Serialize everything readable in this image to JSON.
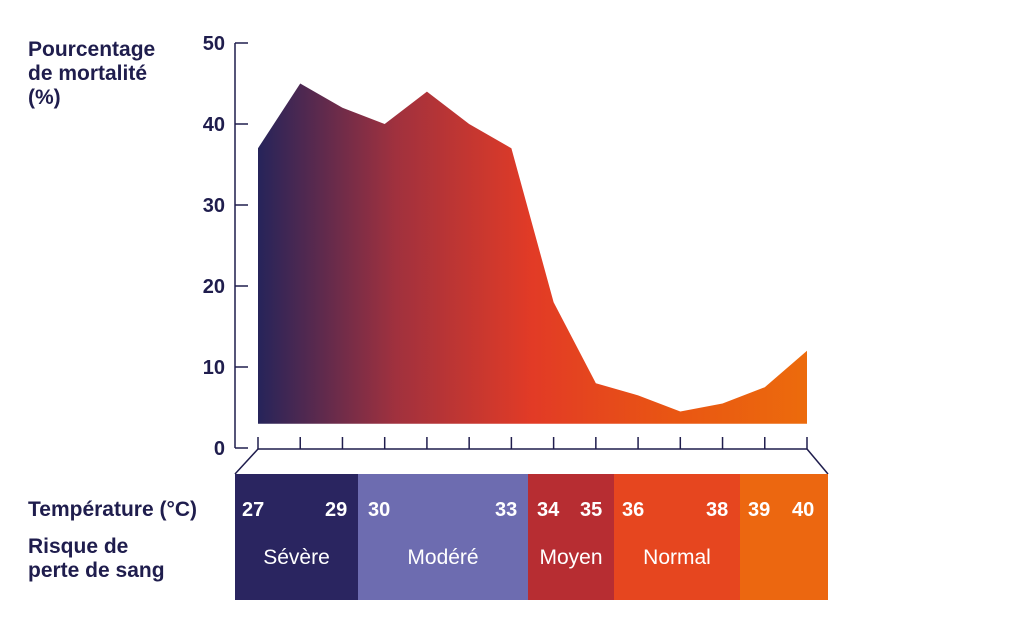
{
  "chart_data": {
    "type": "area",
    "ylabel": "Pourcentage\nde mortalité\n(%)",
    "ylim": [
      0,
      50
    ],
    "yticks": [
      0,
      10,
      20,
      30,
      40,
      50
    ],
    "x": [
      27,
      28,
      29,
      30,
      31,
      32,
      33,
      34,
      35,
      36,
      37,
      38,
      39,
      40
    ],
    "values": [
      37,
      45,
      42,
      40,
      44,
      40,
      37,
      18,
      8,
      6.5,
      4.5,
      5.5,
      7.5,
      12
    ],
    "baseline": 3,
    "gradient": [
      "#26245a",
      "#a0313e",
      "#e23b26",
      "#e95513",
      "#ec6b0c"
    ]
  },
  "temperature_label": "Température (°C)",
  "risk_label": "Risque de\nperte de sang",
  "bands": [
    {
      "risk": "Sévère",
      "color": "#2a2560",
      "ticks": [
        "27",
        "29"
      ]
    },
    {
      "risk": "Modéré",
      "color": "#6d6cb0",
      "ticks": [
        "30",
        "33"
      ]
    },
    {
      "risk": "Moyen",
      "color": "#b72d32",
      "ticks": [
        "34",
        "35"
      ]
    },
    {
      "risk": "Normal",
      "color": "#e6461f",
      "ticks": [
        "36",
        "38"
      ]
    },
    {
      "risk": "",
      "color": "#ec6710",
      "ticks": [
        "39",
        "40"
      ]
    }
  ]
}
